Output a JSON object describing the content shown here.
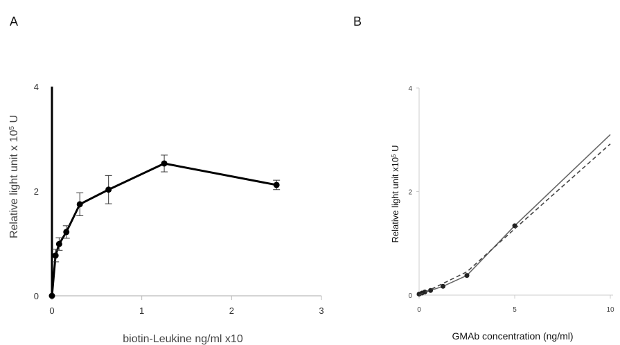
{
  "chart_data": [
    {
      "panel_label": "A",
      "type": "line",
      "xlabel": "biotin-Leukine  ng/ml   x10",
      "ylabel_main": "Relative light unit  x 10",
      "ylabel_sup": "5",
      "ylabel_unit": " U",
      "xlim": [
        0,
        3
      ],
      "ylim": [
        0,
        4
      ],
      "x_ticks": [
        0,
        1,
        2,
        3
      ],
      "y_ticks": [
        0,
        2,
        4
      ],
      "x_tick_labels": [
        "0",
        "1",
        "2",
        "3"
      ],
      "y_tick_labels": [
        "0",
        "2",
        "4"
      ],
      "series": [
        {
          "x": [
            0,
            0.04,
            0.08,
            0.16,
            0.31,
            0.63,
            1.25,
            2.5
          ],
          "y": [
            0,
            0.77,
            0.99,
            1.22,
            1.75,
            2.03,
            2.53,
            2.12
          ],
          "err": [
            0,
            0.12,
            0.12,
            0.12,
            0.22,
            0.27,
            0.16,
            0.09
          ]
        }
      ],
      "grid": false
    },
    {
      "panel_label": "B",
      "type": "line",
      "xlabel": "GMAb concentration (ng/ml)",
      "ylabel_main": "Relative light unit  x10",
      "ylabel_sup": "5",
      "ylabel_unit": " U",
      "xlim": [
        0,
        10
      ],
      "ylim": [
        0,
        4
      ],
      "x_ticks": [
        0,
        5,
        10
      ],
      "y_ticks": [
        0,
        2,
        4
      ],
      "x_tick_labels": [
        "0",
        "5",
        "10"
      ],
      "y_tick_labels": [
        "0",
        "2",
        "4"
      ],
      "series": [
        {
          "style": "solid",
          "x": [
            0,
            0.15,
            0.3,
            0.6,
            1.25,
            2.5,
            5,
            10
          ],
          "y": [
            0.02,
            0.04,
            0.06,
            0.09,
            0.17,
            0.38,
            1.34,
            3.1
          ]
        },
        {
          "style": "dashed",
          "x": [
            0,
            2.5,
            5,
            10
          ],
          "y": [
            0.0,
            0.45,
            1.28,
            2.92
          ]
        }
      ],
      "grid": false
    }
  ]
}
